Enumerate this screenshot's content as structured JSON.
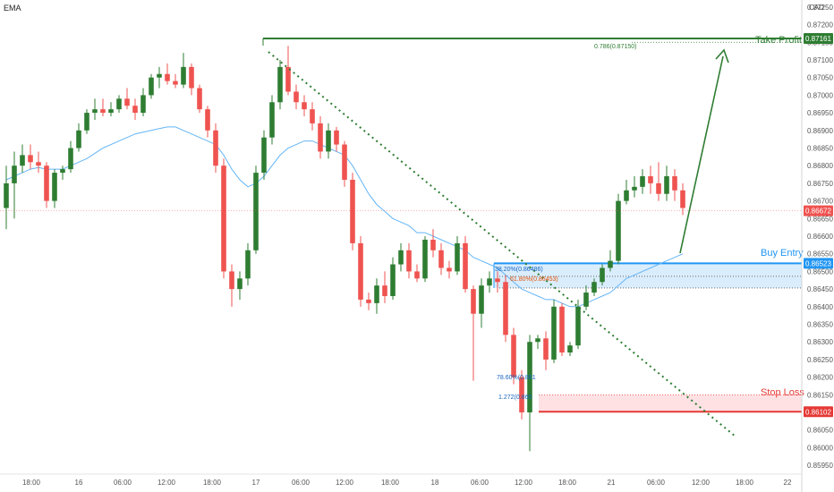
{
  "indicator_label": "EMA",
  "chart_data": {
    "type": "candlestick",
    "y_unit": "CAD",
    "ylim": [
      0.85925,
      0.8727
    ],
    "y_ticks": [
      "0.87250",
      "0.87200",
      "0.87150",
      "0.87100",
      "0.87050",
      "0.87000",
      "0.86950",
      "0.86900",
      "0.86850",
      "0.86800",
      "0.86750",
      "0.86700",
      "0.86650",
      "0.86600",
      "0.86550",
      "0.86500",
      "0.86450",
      "0.86400",
      "0.86350",
      "0.86300",
      "0.86250",
      "0.86200",
      "0.86150",
      "0.86100",
      "0.86050",
      "0.86000",
      "0.85950"
    ],
    "x_ticks": [
      "18:00",
      "16",
      "06:00",
      "12:00",
      "18:00",
      "17",
      "06:00",
      "12:00",
      "18:00",
      "18",
      "06:00",
      "12:00",
      "18:00",
      "21",
      "06:00",
      "12:00",
      "18:00",
      "22"
    ],
    "price_labels": [
      {
        "text": "0.87161",
        "value": 0.87161,
        "color": "#2e7d32"
      },
      {
        "text": "0.86672",
        "value": 0.86672,
        "color": "#ef5350"
      },
      {
        "text": "0.86523",
        "value": 0.86523,
        "color": "#2196f3"
      },
      {
        "text": "0.86102",
        "value": 0.86102,
        "color": "#e53935"
      }
    ],
    "annotations": {
      "take_profit": "Take Profit",
      "buy_entry": "Buy Entry",
      "stop_loss": "Stop Loss",
      "fib_786": "0.786(0.87150)",
      "fib_382": "38.20%(0.86486)",
      "fib_618": "61.80%(0.86453)",
      "fib_7860": "78.60%(0.861",
      "fib_1272": "1.272(0.860"
    },
    "colors": {
      "up": "#2e7d32",
      "down": "#ef5350",
      "ema": "#64b5f6",
      "trend": "#2e7d32",
      "entry": "#2196f3",
      "stop": "#e53935"
    },
    "candles": [
      [
        0.8668,
        0.868,
        0.8662,
        0.8675
      ],
      [
        0.8675,
        0.8684,
        0.8665,
        0.868
      ],
      [
        0.868,
        0.8686,
        0.8678,
        0.8683
      ],
      [
        0.8683,
        0.8686,
        0.8679,
        0.8681
      ],
      [
        0.8681,
        0.8684,
        0.8678,
        0.868
      ],
      [
        0.868,
        0.8681,
        0.8668,
        0.867
      ],
      [
        0.867,
        0.8679,
        0.8668,
        0.8678
      ],
      [
        0.8678,
        0.868,
        0.8676,
        0.8679
      ],
      [
        0.8679,
        0.8687,
        0.8678,
        0.8685
      ],
      [
        0.8685,
        0.8692,
        0.8684,
        0.869
      ],
      [
        0.869,
        0.8696,
        0.8689,
        0.8695
      ],
      [
        0.8695,
        0.8699,
        0.8693,
        0.8696
      ],
      [
        0.8696,
        0.8699,
        0.8694,
        0.8695
      ],
      [
        0.8695,
        0.8698,
        0.8694,
        0.8696
      ],
      [
        0.8696,
        0.87,
        0.8695,
        0.8699
      ],
      [
        0.8699,
        0.8702,
        0.8696,
        0.8697
      ],
      [
        0.8697,
        0.8699,
        0.8693,
        0.8695
      ],
      [
        0.8695,
        0.8702,
        0.8694,
        0.87
      ],
      [
        0.87,
        0.8706,
        0.8699,
        0.8705
      ],
      [
        0.8705,
        0.8708,
        0.8702,
        0.8706
      ],
      [
        0.8706,
        0.8709,
        0.8703,
        0.8704
      ],
      [
        0.8704,
        0.8706,
        0.8702,
        0.8703
      ],
      [
        0.8703,
        0.8712,
        0.8702,
        0.8708
      ],
      [
        0.8708,
        0.8709,
        0.87,
        0.8702
      ],
      [
        0.8702,
        0.8703,
        0.8695,
        0.8696
      ],
      [
        0.8696,
        0.8697,
        0.8688,
        0.869
      ],
      [
        0.869,
        0.8692,
        0.8678,
        0.868
      ],
      [
        0.868,
        0.8682,
        0.8648,
        0.865
      ],
      [
        0.865,
        0.8652,
        0.864,
        0.8645
      ],
      [
        0.8645,
        0.865,
        0.8642,
        0.8648
      ],
      [
        0.8648,
        0.8658,
        0.8646,
        0.8656
      ],
      [
        0.8656,
        0.868,
        0.8655,
        0.8678
      ],
      [
        0.8678,
        0.869,
        0.8676,
        0.8688
      ],
      [
        0.8688,
        0.87,
        0.8686,
        0.8698
      ],
      [
        0.8698,
        0.871,
        0.8696,
        0.8708
      ],
      [
        0.8708,
        0.8714,
        0.87,
        0.8701
      ],
      [
        0.8701,
        0.8703,
        0.8696,
        0.8698
      ],
      [
        0.8698,
        0.87,
        0.8694,
        0.8696
      ],
      [
        0.8696,
        0.8698,
        0.869,
        0.8692
      ],
      [
        0.8692,
        0.8694,
        0.8682,
        0.8684
      ],
      [
        0.8684,
        0.8692,
        0.8682,
        0.869
      ],
      [
        0.869,
        0.8691,
        0.8684,
        0.8686
      ],
      [
        0.8686,
        0.8687,
        0.8674,
        0.8676
      ],
      [
        0.8676,
        0.8678,
        0.8656,
        0.8658
      ],
      [
        0.8658,
        0.866,
        0.864,
        0.8642
      ],
      [
        0.8642,
        0.8644,
        0.8639,
        0.8641
      ],
      [
        0.8641,
        0.8648,
        0.8638,
        0.8646
      ],
      [
        0.8646,
        0.865,
        0.8641,
        0.8643
      ],
      [
        0.8643,
        0.8654,
        0.8642,
        0.8652
      ],
      [
        0.8652,
        0.8658,
        0.865,
        0.8656
      ],
      [
        0.8656,
        0.8658,
        0.8648,
        0.865
      ],
      [
        0.865,
        0.8652,
        0.8647,
        0.8648
      ],
      [
        0.8648,
        0.866,
        0.8647,
        0.8659
      ],
      [
        0.8659,
        0.8662,
        0.8654,
        0.8656
      ],
      [
        0.8656,
        0.8658,
        0.8649,
        0.8651
      ],
      [
        0.8651,
        0.8653,
        0.8648,
        0.865
      ],
      [
        0.865,
        0.866,
        0.8649,
        0.8658
      ],
      [
        0.8658,
        0.866,
        0.8644,
        0.8645
      ],
      [
        0.8645,
        0.8646,
        0.8619,
        0.8638
      ],
      [
        0.8638,
        0.8648,
        0.8634,
        0.8646
      ],
      [
        0.8646,
        0.865,
        0.8644,
        0.8648
      ],
      [
        0.8648,
        0.865,
        0.8644,
        0.8647
      ],
      [
        0.8647,
        0.8649,
        0.863,
        0.8632
      ],
      [
        0.8632,
        0.8634,
        0.8618,
        0.862
      ],
      [
        0.862,
        0.8622,
        0.8608,
        0.861
      ],
      [
        0.861,
        0.8632,
        0.8599,
        0.863
      ],
      [
        0.863,
        0.8632,
        0.8628,
        0.8631
      ],
      [
        0.8631,
        0.8633,
        0.8622,
        0.8625
      ],
      [
        0.8625,
        0.8642,
        0.8624,
        0.864
      ],
      [
        0.864,
        0.8641,
        0.8626,
        0.8627
      ],
      [
        0.8627,
        0.863,
        0.8626,
        0.8629
      ],
      [
        0.8629,
        0.8642,
        0.8628,
        0.864
      ],
      [
        0.864,
        0.8646,
        0.8639,
        0.8644
      ],
      [
        0.8644,
        0.8648,
        0.8643,
        0.8647
      ],
      [
        0.8647,
        0.8652,
        0.8646,
        0.8651
      ],
      [
        0.8651,
        0.8656,
        0.865,
        0.8653
      ],
      [
        0.8653,
        0.8672,
        0.8652,
        0.867
      ],
      [
        0.867,
        0.8676,
        0.8669,
        0.8673
      ],
      [
        0.8673,
        0.8677,
        0.8671,
        0.8674
      ],
      [
        0.8674,
        0.8679,
        0.8672,
        0.8677
      ],
      [
        0.8677,
        0.868,
        0.8672,
        0.8675
      ],
      [
        0.8675,
        0.8681,
        0.867,
        0.8672
      ],
      [
        0.8672,
        0.868,
        0.867,
        0.8677
      ],
      [
        0.8677,
        0.8679,
        0.867,
        0.8673
      ],
      [
        0.8673,
        0.8675,
        0.8666,
        0.8668
      ]
    ],
    "ema": [
      0.8676,
      0.8677,
      0.8678,
      0.8679,
      0.86795,
      0.8679,
      0.8679,
      0.8679,
      0.868,
      0.8681,
      0.8682,
      0.86835,
      0.8685,
      0.8686,
      0.8687,
      0.8688,
      0.8689,
      0.86895,
      0.869,
      0.86905,
      0.8691,
      0.8691,
      0.869,
      0.8689,
      0.8688,
      0.8687,
      0.8686,
      0.8683,
      0.8679,
      0.8676,
      0.8674,
      0.8675,
      0.8677,
      0.868,
      0.8683,
      0.8685,
      0.8686,
      0.8687,
      0.8687,
      0.8686,
      0.8685,
      0.8684,
      0.8683,
      0.868,
      0.8676,
      0.8672,
      0.8669,
      0.8667,
      0.8665,
      0.8664,
      0.8663,
      0.8661,
      0.8661,
      0.866,
      0.8659,
      0.8658,
      0.8657,
      0.8656,
      0.8654,
      0.8653,
      0.8652,
      0.8651,
      0.8649,
      0.8647,
      0.8645,
      0.8644,
      0.8643,
      0.8642,
      0.8642,
      0.8641,
      0.864,
      0.864,
      0.8641,
      0.8642,
      0.8643,
      0.8644,
      0.8646,
      0.8648,
      0.8649,
      0.865,
      0.8651,
      0.8652,
      0.8653,
      0.8654,
      0.8655
    ]
  }
}
